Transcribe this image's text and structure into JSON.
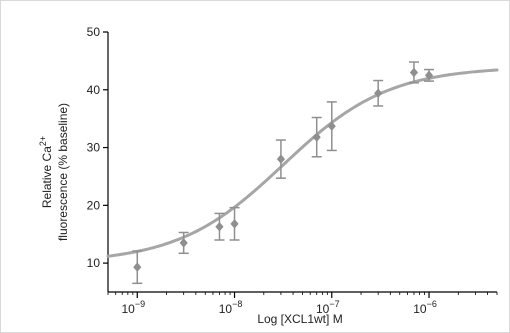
{
  "chart_data": {
    "type": "scatter",
    "title": "",
    "xlabel": "Log [XCL1wt] M",
    "ylabel_line1": "Relative Ca",
    "ylabel_sup": "2+",
    "ylabel_line2": "fluorescence (% baseline)",
    "xscale": "log",
    "xlim": [
      5e-10,
      5e-06
    ],
    "ylim": [
      5,
      50
    ],
    "x_ticks": [
      1e-09,
      1e-08,
      1e-07,
      1e-06
    ],
    "x_tick_labels": [
      {
        "base": "10",
        "exp": "−9"
      },
      {
        "base": "10",
        "exp": "−8"
      },
      {
        "base": "10",
        "exp": "−7"
      },
      {
        "base": "10",
        "exp": "−6"
      }
    ],
    "y_ticks": [
      10,
      20,
      30,
      40,
      50
    ],
    "y_tick_labels": [
      "10",
      "20",
      "30",
      "40",
      "50"
    ],
    "grid": false,
    "legend": "none",
    "series": [
      {
        "marker": "diamond",
        "x": [
          1e-09,
          3e-09,
          7e-09,
          1e-08,
          3e-08,
          7e-08,
          1e-07,
          3e-07,
          7e-07,
          1e-06
        ],
        "y": [
          9.3,
          13.5,
          16.3,
          16.8,
          28.0,
          31.8,
          33.7,
          39.4,
          43.0,
          42.5
        ],
        "error": [
          2.8,
          1.8,
          2.3,
          2.8,
          3.3,
          3.4,
          4.2,
          2.2,
          1.8,
          1.0
        ]
      }
    ],
    "fit": {
      "type": "sigmoidal",
      "bottom": 10.0,
      "top": 44.0,
      "logEC50": -7.5,
      "hill": 0.8
    },
    "colors": {
      "data": "#8f8f8f",
      "fit": "#a6a6a6",
      "axis": "#000000"
    }
  }
}
